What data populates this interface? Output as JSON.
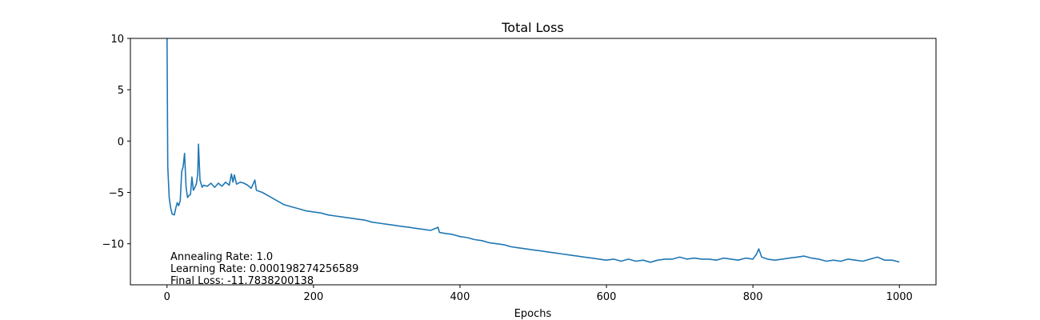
{
  "chart_data": {
    "type": "line",
    "title": "Total Loss",
    "xlabel": "Epochs",
    "ylabel": "",
    "xlim": [
      -50,
      1050
    ],
    "ylim": [
      -14,
      10
    ],
    "xticks": [
      0,
      200,
      400,
      600,
      800,
      1000
    ],
    "yticks": [
      -10,
      -5,
      0,
      5,
      10
    ],
    "grid": false,
    "series": [
      {
        "color": "#1f77b4",
        "points": [
          [
            0,
            10
          ],
          [
            1,
            -2.5
          ],
          [
            2,
            -4
          ],
          [
            3,
            -5.5
          ],
          [
            5,
            -6.5
          ],
          [
            7,
            -7.1
          ],
          [
            10,
            -7.2
          ],
          [
            12,
            -6.5
          ],
          [
            14,
            -6.0
          ],
          [
            16,
            -6.3
          ],
          [
            18,
            -5.8
          ],
          [
            20,
            -3.0
          ],
          [
            22,
            -2.5
          ],
          [
            24,
            -1.2
          ],
          [
            26,
            -4.5
          ],
          [
            28,
            -5.5
          ],
          [
            30,
            -5.3
          ],
          [
            32,
            -5.2
          ],
          [
            34,
            -3.5
          ],
          [
            36,
            -4.8
          ],
          [
            38,
            -4.5
          ],
          [
            40,
            -4.2
          ],
          [
            42,
            -3.2
          ],
          [
            43,
            -0.3
          ],
          [
            45,
            -3.8
          ],
          [
            48,
            -4.5
          ],
          [
            50,
            -4.3
          ],
          [
            55,
            -4.4
          ],
          [
            60,
            -4.1
          ],
          [
            65,
            -4.5
          ],
          [
            70,
            -4.1
          ],
          [
            75,
            -4.4
          ],
          [
            80,
            -4.0
          ],
          [
            85,
            -4.3
          ],
          [
            88,
            -3.2
          ],
          [
            90,
            -4.0
          ],
          [
            92,
            -3.3
          ],
          [
            95,
            -4.2
          ],
          [
            100,
            -4.0
          ],
          [
            105,
            -4.1
          ],
          [
            110,
            -4.3
          ],
          [
            115,
            -4.6
          ],
          [
            120,
            -3.8
          ],
          [
            122,
            -4.8
          ],
          [
            130,
            -5.0
          ],
          [
            140,
            -5.4
          ],
          [
            150,
            -5.8
          ],
          [
            160,
            -6.2
          ],
          [
            170,
            -6.4
          ],
          [
            180,
            -6.6
          ],
          [
            190,
            -6.8
          ],
          [
            200,
            -6.9
          ],
          [
            210,
            -7.0
          ],
          [
            220,
            -7.2
          ],
          [
            230,
            -7.3
          ],
          [
            240,
            -7.4
          ],
          [
            250,
            -7.5
          ],
          [
            260,
            -7.6
          ],
          [
            270,
            -7.7
          ],
          [
            280,
            -7.9
          ],
          [
            290,
            -8.0
          ],
          [
            300,
            -8.1
          ],
          [
            310,
            -8.2
          ],
          [
            320,
            -8.3
          ],
          [
            330,
            -8.4
          ],
          [
            340,
            -8.5
          ],
          [
            350,
            -8.6
          ],
          [
            360,
            -8.7
          ],
          [
            370,
            -8.4
          ],
          [
            372,
            -8.9
          ],
          [
            380,
            -9.0
          ],
          [
            390,
            -9.1
          ],
          [
            400,
            -9.3
          ],
          [
            410,
            -9.4
          ],
          [
            420,
            -9.6
          ],
          [
            430,
            -9.7
          ],
          [
            440,
            -9.9
          ],
          [
            450,
            -10.0
          ],
          [
            460,
            -10.1
          ],
          [
            470,
            -10.3
          ],
          [
            480,
            -10.4
          ],
          [
            490,
            -10.5
          ],
          [
            500,
            -10.6
          ],
          [
            510,
            -10.7
          ],
          [
            520,
            -10.8
          ],
          [
            530,
            -10.9
          ],
          [
            540,
            -11.0
          ],
          [
            550,
            -11.1
          ],
          [
            560,
            -11.2
          ],
          [
            570,
            -11.3
          ],
          [
            580,
            -11.4
          ],
          [
            590,
            -11.5
          ],
          [
            600,
            -11.6
          ],
          [
            610,
            -11.5
          ],
          [
            620,
            -11.7
          ],
          [
            630,
            -11.5
          ],
          [
            640,
            -11.7
          ],
          [
            650,
            -11.6
          ],
          [
            660,
            -11.8
          ],
          [
            670,
            -11.6
          ],
          [
            680,
            -11.5
          ],
          [
            690,
            -11.5
          ],
          [
            700,
            -11.3
          ],
          [
            710,
            -11.5
          ],
          [
            720,
            -11.4
          ],
          [
            730,
            -11.5
          ],
          [
            740,
            -11.5
          ],
          [
            750,
            -11.6
          ],
          [
            760,
            -11.4
          ],
          [
            770,
            -11.5
          ],
          [
            780,
            -11.6
          ],
          [
            790,
            -11.4
          ],
          [
            800,
            -11.5
          ],
          [
            805,
            -11.0
          ],
          [
            808,
            -10.5
          ],
          [
            812,
            -11.3
          ],
          [
            820,
            -11.5
          ],
          [
            830,
            -11.6
          ],
          [
            840,
            -11.5
          ],
          [
            850,
            -11.4
          ],
          [
            860,
            -11.3
          ],
          [
            870,
            -11.2
          ],
          [
            880,
            -11.4
          ],
          [
            890,
            -11.5
          ],
          [
            900,
            -11.7
          ],
          [
            910,
            -11.6
          ],
          [
            920,
            -11.7
          ],
          [
            930,
            -11.5
          ],
          [
            940,
            -11.6
          ],
          [
            950,
            -11.7
          ],
          [
            960,
            -11.5
          ],
          [
            970,
            -11.3
          ],
          [
            980,
            -11.6
          ],
          [
            990,
            -11.6
          ],
          [
            1000,
            -11.78
          ]
        ]
      }
    ],
    "annotations": [
      "Annealing Rate: 1.0",
      "Learning Rate: 0.000198274256589",
      "Final Loss: -11.7838200138"
    ]
  }
}
